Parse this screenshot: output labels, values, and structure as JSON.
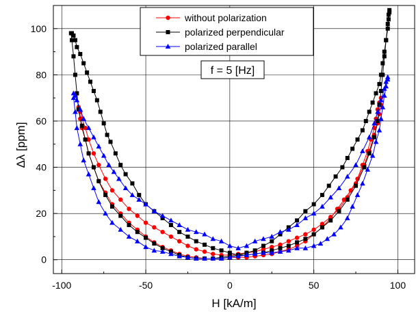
{
  "chart_data": {
    "type": "line",
    "xlabel": "H [kA/m]",
    "ylabel": "Δλ [ppm]",
    "annotation": "f = 5 [Hz]",
    "xlim": [
      -105,
      110
    ],
    "ylim": [
      -6,
      110
    ],
    "xticks": [
      -100,
      -50,
      0,
      50,
      100
    ],
    "yticks": [
      0,
      20,
      40,
      60,
      80,
      100
    ],
    "grid": true,
    "legend_position": "top-center",
    "series": [
      {
        "name": "without polarization",
        "color": "#ff0000",
        "marker": "circle",
        "points": [
          [
            -90,
            66
          ],
          [
            -89,
            64
          ],
          [
            -88,
            61
          ],
          [
            -86,
            57
          ],
          [
            -84,
            52
          ],
          [
            -81,
            46
          ],
          [
            -78,
            41
          ],
          [
            -74,
            35
          ],
          [
            -70,
            30
          ],
          [
            -65,
            26
          ],
          [
            -60,
            22
          ],
          [
            -55,
            19
          ],
          [
            -50,
            16
          ],
          [
            -45,
            14
          ],
          [
            -40,
            12
          ],
          [
            -35,
            10
          ],
          [
            -30,
            8
          ],
          [
            -25,
            6
          ],
          [
            -20,
            4.5
          ],
          [
            -15,
            3.5
          ],
          [
            -10,
            2.5
          ],
          [
            -5,
            2
          ],
          [
            0,
            2
          ],
          [
            5,
            2.5
          ],
          [
            10,
            3
          ],
          [
            15,
            3.5
          ],
          [
            20,
            4.5
          ],
          [
            25,
            5.5
          ],
          [
            30,
            6.5
          ],
          [
            35,
            8
          ],
          [
            40,
            9.5
          ],
          [
            45,
            11
          ],
          [
            50,
            13
          ],
          [
            55,
            15.5
          ],
          [
            60,
            18.5
          ],
          [
            65,
            22
          ],
          [
            70,
            27
          ],
          [
            75,
            33
          ],
          [
            80,
            41
          ],
          [
            83,
            47
          ],
          [
            86,
            54
          ],
          [
            88,
            59
          ],
          [
            89,
            63
          ],
          [
            90,
            67
          ],
          [
            90,
            70
          ],
          [
            89,
            68
          ],
          [
            88,
            65
          ],
          [
            87,
            61
          ],
          [
            86,
            57
          ],
          [
            84,
            52
          ],
          [
            82,
            47
          ],
          [
            79,
            41
          ],
          [
            76,
            35
          ],
          [
            72,
            30
          ],
          [
            68,
            26
          ],
          [
            64,
            22
          ],
          [
            60,
            18
          ],
          [
            55,
            14
          ],
          [
            50,
            11
          ],
          [
            45,
            8
          ],
          [
            40,
            6
          ],
          [
            35,
            4.5
          ],
          [
            30,
            3.5
          ],
          [
            25,
            2.5
          ],
          [
            20,
            2
          ],
          [
            15,
            1.5
          ],
          [
            10,
            1
          ],
          [
            5,
            1
          ],
          [
            0,
            1
          ],
          [
            -5,
            0.5
          ],
          [
            -10,
            0.5
          ],
          [
            -15,
            0.5
          ],
          [
            -20,
            1
          ],
          [
            -25,
            1.5
          ],
          [
            -30,
            2.5
          ],
          [
            -35,
            4
          ],
          [
            -40,
            5.5
          ],
          [
            -45,
            7.5
          ],
          [
            -50,
            10
          ],
          [
            -55,
            13
          ],
          [
            -60,
            16
          ],
          [
            -65,
            20
          ],
          [
            -70,
            24
          ],
          [
            -74,
            29
          ],
          [
            -78,
            34
          ],
          [
            -81,
            40
          ],
          [
            -84,
            46
          ],
          [
            -86,
            52
          ],
          [
            -88,
            57
          ],
          [
            -89,
            61
          ],
          [
            -90,
            65
          ]
        ]
      },
      {
        "name": "polarized perpendicular",
        "color": "#000000",
        "marker": "square",
        "points": [
          [
            -94,
            98
          ],
          [
            -93,
            97
          ],
          [
            -92,
            95
          ],
          [
            -91,
            92
          ],
          [
            -89,
            89
          ],
          [
            -87,
            85
          ],
          [
            -85,
            81
          ],
          [
            -83,
            77
          ],
          [
            -81,
            73
          ],
          [
            -79,
            69
          ],
          [
            -77,
            64
          ],
          [
            -75,
            59
          ],
          [
            -73,
            54
          ],
          [
            -71,
            51
          ],
          [
            -68,
            46
          ],
          [
            -65,
            41
          ],
          [
            -62,
            37
          ],
          [
            -58,
            33
          ],
          [
            -54,
            28
          ],
          [
            -50,
            24
          ],
          [
            -45,
            21
          ],
          [
            -40,
            18
          ],
          [
            -35,
            15
          ],
          [
            -30,
            12
          ],
          [
            -25,
            10
          ],
          [
            -20,
            8
          ],
          [
            -15,
            6.5
          ],
          [
            -10,
            5
          ],
          [
            -5,
            4
          ],
          [
            0,
            3
          ],
          [
            5,
            2
          ],
          [
            10,
            2
          ],
          [
            15,
            2.5
          ],
          [
            20,
            3
          ],
          [
            25,
            4
          ],
          [
            30,
            5
          ],
          [
            35,
            6
          ],
          [
            40,
            7.5
          ],
          [
            45,
            9
          ],
          [
            50,
            11
          ],
          [
            55,
            14
          ],
          [
            60,
            17
          ],
          [
            65,
            21
          ],
          [
            70,
            26
          ],
          [
            75,
            32
          ],
          [
            80,
            40
          ],
          [
            83,
            46
          ],
          [
            86,
            53
          ],
          [
            88,
            60
          ],
          [
            89,
            67
          ],
          [
            90,
            73
          ],
          [
            91,
            80
          ],
          [
            92,
            88
          ],
          [
            93,
            95
          ],
          [
            94,
            102
          ],
          [
            94.5,
            106
          ],
          [
            95,
            108
          ],
          [
            95,
            107
          ],
          [
            94.5,
            104
          ],
          [
            94,
            100
          ],
          [
            93,
            95
          ],
          [
            92,
            90
          ],
          [
            91,
            85
          ],
          [
            90,
            80
          ],
          [
            89,
            76
          ],
          [
            87,
            72
          ],
          [
            85,
            68
          ],
          [
            83,
            64
          ],
          [
            81,
            60
          ],
          [
            79,
            56
          ],
          [
            76,
            52
          ],
          [
            73,
            48
          ],
          [
            70,
            44
          ],
          [
            67,
            40
          ],
          [
            63,
            36
          ],
          [
            59,
            32
          ],
          [
            55,
            28
          ],
          [
            50,
            24
          ],
          [
            45,
            21
          ],
          [
            40,
            17
          ],
          [
            35,
            14
          ],
          [
            30,
            11
          ],
          [
            25,
            8
          ],
          [
            20,
            6
          ],
          [
            15,
            4
          ],
          [
            10,
            3
          ],
          [
            5,
            2
          ],
          [
            0,
            1.5
          ],
          [
            -5,
            1
          ],
          [
            -10,
            0.5
          ],
          [
            -15,
            0.5
          ],
          [
            -20,
            0.5
          ],
          [
            -25,
            1
          ],
          [
            -30,
            2
          ],
          [
            -35,
            3.5
          ],
          [
            -40,
            5
          ],
          [
            -45,
            7
          ],
          [
            -50,
            9.5
          ],
          [
            -55,
            12
          ],
          [
            -60,
            15
          ],
          [
            -65,
            19
          ],
          [
            -70,
            23
          ],
          [
            -74,
            28
          ],
          [
            -78,
            34
          ],
          [
            -81,
            40
          ],
          [
            -84,
            46
          ],
          [
            -86,
            52
          ],
          [
            -88,
            58
          ],
          [
            -90,
            65
          ],
          [
            -91,
            72
          ],
          [
            -92,
            80
          ],
          [
            -93,
            88
          ],
          [
            -94,
            95
          ],
          [
            -94.5,
            98
          ]
        ]
      },
      {
        "name": "polarized parallel",
        "color": "#0000ff",
        "marker": "triangle",
        "points": [
          [
            -93,
            72
          ],
          [
            -92,
            71
          ],
          [
            -91,
            69
          ],
          [
            -89,
            65
          ],
          [
            -87,
            61
          ],
          [
            -84,
            57
          ],
          [
            -81,
            53
          ],
          [
            -78,
            49
          ],
          [
            -75,
            45
          ],
          [
            -72,
            41
          ],
          [
            -69,
            38
          ],
          [
            -66,
            35
          ],
          [
            -62,
            31
          ],
          [
            -58,
            28
          ],
          [
            -54,
            26
          ],
          [
            -50,
            24
          ],
          [
            -45,
            21
          ],
          [
            -40,
            19
          ],
          [
            -35,
            17
          ],
          [
            -30,
            15
          ],
          [
            -25,
            13
          ],
          [
            -20,
            12
          ],
          [
            -15,
            11
          ],
          [
            -10,
            9
          ],
          [
            -5,
            8
          ],
          [
            0,
            6
          ],
          [
            5,
            5
          ],
          [
            10,
            6
          ],
          [
            15,
            8
          ],
          [
            20,
            9
          ],
          [
            25,
            10
          ],
          [
            30,
            12
          ],
          [
            35,
            13
          ],
          [
            40,
            15
          ],
          [
            45,
            18
          ],
          [
            50,
            20
          ],
          [
            55,
            23
          ],
          [
            60,
            27
          ],
          [
            65,
            31
          ],
          [
            70,
            36
          ],
          [
            75,
            41
          ],
          [
            79,
            47
          ],
          [
            83,
            53
          ],
          [
            86,
            59
          ],
          [
            88,
            64
          ],
          [
            90,
            69
          ],
          [
            92,
            74
          ],
          [
            93,
            77
          ],
          [
            94,
            79
          ],
          [
            94,
            78
          ],
          [
            93,
            75
          ],
          [
            92,
            71
          ],
          [
            91,
            66
          ],
          [
            90,
            61
          ],
          [
            89,
            56
          ],
          [
            87,
            51
          ],
          [
            85,
            45
          ],
          [
            82,
            39
          ],
          [
            79,
            33
          ],
          [
            76,
            28
          ],
          [
            73,
            23
          ],
          [
            70,
            18
          ],
          [
            66,
            14
          ],
          [
            62,
            11
          ],
          [
            58,
            9
          ],
          [
            54,
            7
          ],
          [
            50,
            6
          ],
          [
            45,
            5
          ],
          [
            40,
            5
          ],
          [
            35,
            4
          ],
          [
            30,
            3.5
          ],
          [
            25,
            3
          ],
          [
            20,
            3
          ],
          [
            15,
            2.5
          ],
          [
            10,
            2
          ],
          [
            5,
            1.5
          ],
          [
            0,
            1
          ],
          [
            -5,
            0.5
          ],
          [
            -10,
            0.5
          ],
          [
            -15,
            0.5
          ],
          [
            -20,
            0.5
          ],
          [
            -25,
            1
          ],
          [
            -30,
            1.5
          ],
          [
            -35,
            2.5
          ],
          [
            -40,
            3.5
          ],
          [
            -45,
            4
          ],
          [
            -50,
            5.5
          ],
          [
            -55,
            8
          ],
          [
            -60,
            10
          ],
          [
            -65,
            13
          ],
          [
            -70,
            16
          ],
          [
            -74,
            20
          ],
          [
            -78,
            25
          ],
          [
            -81,
            31
          ],
          [
            -84,
            37
          ],
          [
            -87,
            43
          ],
          [
            -89,
            50
          ],
          [
            -91,
            57
          ],
          [
            -92,
            64
          ],
          [
            -93,
            70
          ]
        ]
      }
    ]
  }
}
